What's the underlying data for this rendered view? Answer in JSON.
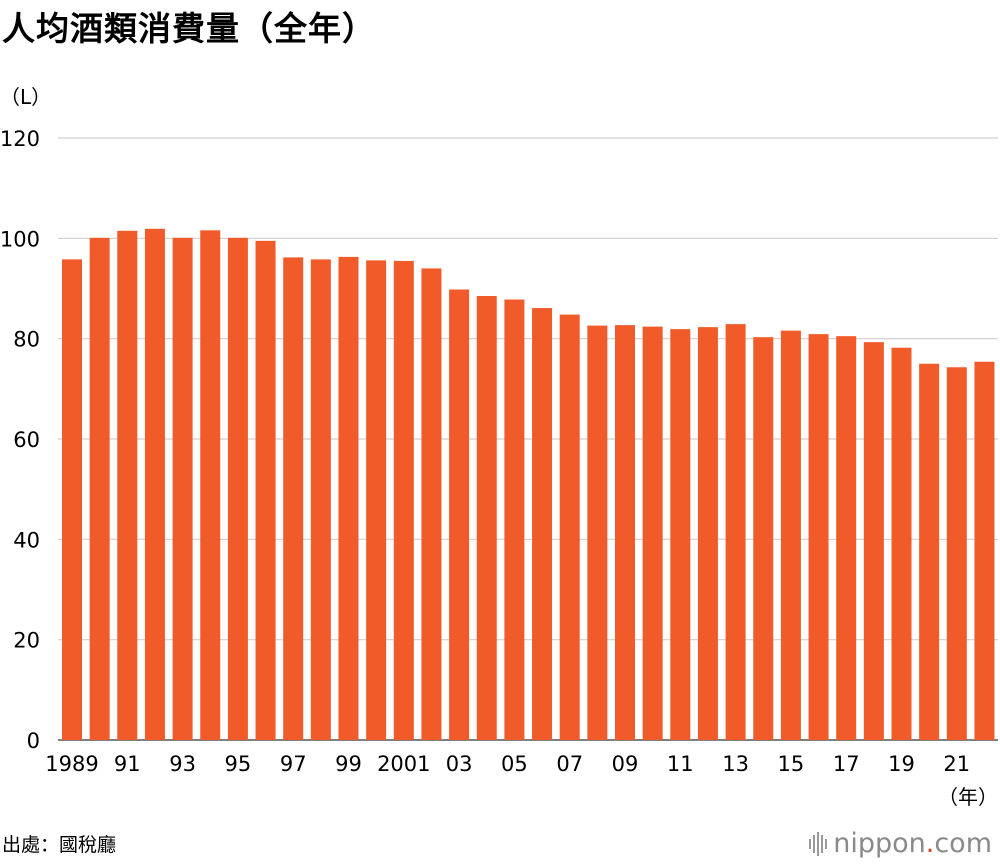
{
  "chart_data": {
    "type": "bar",
    "title": "人均酒類消費量（全年）",
    "ylabel": "（L）",
    "xlabel": "（年）",
    "ylim": [
      0,
      120
    ],
    "yticks": [
      0,
      20,
      40,
      60,
      80,
      100,
      120
    ],
    "grid": true,
    "color": "#f15a29",
    "categories": [
      "1989",
      "1990",
      "1991",
      "1992",
      "1993",
      "1994",
      "1995",
      "1996",
      "1997",
      "1998",
      "1999",
      "2000",
      "2001",
      "2002",
      "2003",
      "2004",
      "2005",
      "2006",
      "2007",
      "2008",
      "2009",
      "2010",
      "2011",
      "2012",
      "2013",
      "2014",
      "2015",
      "2016",
      "2017",
      "2018",
      "2019",
      "2020",
      "2021",
      "2022"
    ],
    "tick_labels": [
      "1989",
      "",
      "91",
      "",
      "93",
      "",
      "95",
      "",
      "97",
      "",
      "99",
      "",
      "2001",
      "",
      "03",
      "",
      "05",
      "",
      "07",
      "",
      "09",
      "",
      "11",
      "",
      "13",
      "",
      "15",
      "",
      "17",
      "",
      "19",
      "",
      "21",
      ""
    ],
    "values": [
      95.8,
      100.1,
      101.5,
      101.9,
      100.1,
      101.6,
      100.1,
      99.5,
      96.2,
      95.8,
      96.3,
      95.6,
      95.5,
      94.0,
      89.8,
      88.5,
      87.8,
      86.1,
      84.8,
      82.6,
      82.7,
      82.4,
      81.9,
      82.3,
      82.9,
      80.3,
      81.6,
      80.9,
      80.5,
      79.3,
      78.2,
      75.0,
      74.3,
      75.4
    ]
  },
  "source": "出處：國稅廳",
  "logo": {
    "brand": "nippon",
    "dot": ".",
    "tld": "com"
  }
}
